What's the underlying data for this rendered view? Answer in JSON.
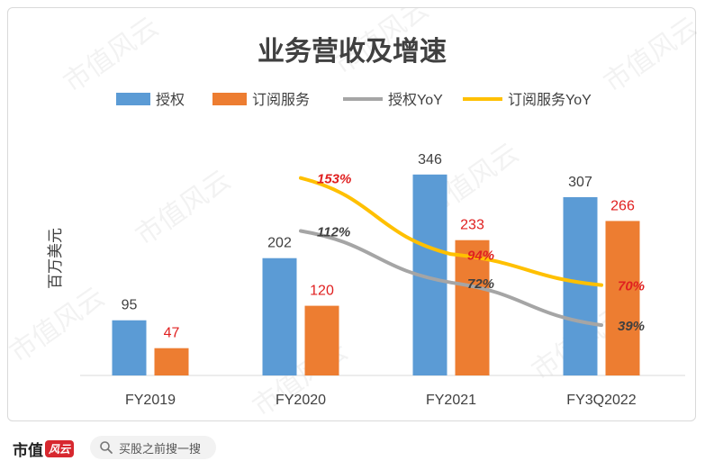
{
  "chart_data": {
    "type": "bar",
    "title": "业务营收及增速",
    "ylabel": "百万美元",
    "categories": [
      "FY2019",
      "FY2020",
      "FY2021",
      "FY3Q2022"
    ],
    "series": [
      {
        "name": "授权",
        "kind": "bar",
        "color": "#5b9bd5",
        "values": [
          95,
          202,
          346,
          307
        ],
        "labels": [
          "95",
          "202",
          "346",
          "307"
        ]
      },
      {
        "name": "订阅服务",
        "kind": "bar",
        "color": "#ed7d31",
        "values": [
          47,
          120,
          233,
          266
        ],
        "labels": [
          "47",
          "120",
          "233",
          "266"
        ]
      },
      {
        "name": "授权YoY",
        "kind": "line",
        "color": "#a5a5a5",
        "values": [
          null,
          112,
          72,
          39
        ],
        "labels": [
          "",
          "112%",
          "72%",
          "39%"
        ]
      },
      {
        "name": "订阅服务YoY",
        "kind": "line",
        "color": "#ffc000",
        "values": [
          null,
          153,
          94,
          70
        ],
        "labels": [
          "",
          "153%",
          "94%",
          "70%"
        ]
      }
    ],
    "ylim": [
      0,
      400
    ],
    "y2lim": [
      0,
      180
    ],
    "grid": false,
    "legend": "top",
    "label_colors": {
      "orange_bar_labels": "#e02020",
      "gray_line_labels": "#404040",
      "yellow_line_labels": "#e02020"
    }
  },
  "watermark": {
    "text": "市值风云"
  },
  "footer": {
    "brand_name": "市值",
    "brand_mark": "风云",
    "search_placeholder": "买股之前搜一搜"
  },
  "icons": {
    "search": "search-icon"
  }
}
